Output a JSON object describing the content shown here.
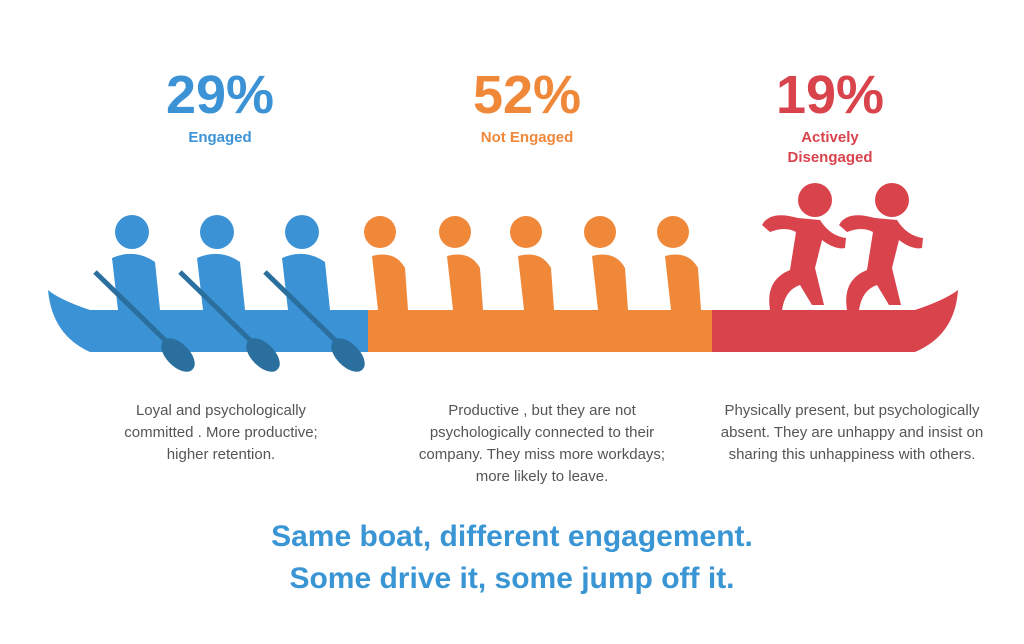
{
  "groups": [
    {
      "percent": "29%",
      "label": "Engaged",
      "description": "Loyal and psychologically committed . More productive; higher retention."
    },
    {
      "percent": "52%",
      "label": "Not Engaged",
      "description": "Productive , but they are not psychologically connected to their company. They miss more workdays; more likely to leave."
    },
    {
      "percent": "19%",
      "label": "Actively Disengaged",
      "description": "Physically present, but psychologically absent. They are unhappy and insist on sharing this unhappiness with others."
    }
  ],
  "footer": {
    "lines": [
      "Same boat, different engagement.",
      "Some drive it, some jump off it."
    ]
  }
}
